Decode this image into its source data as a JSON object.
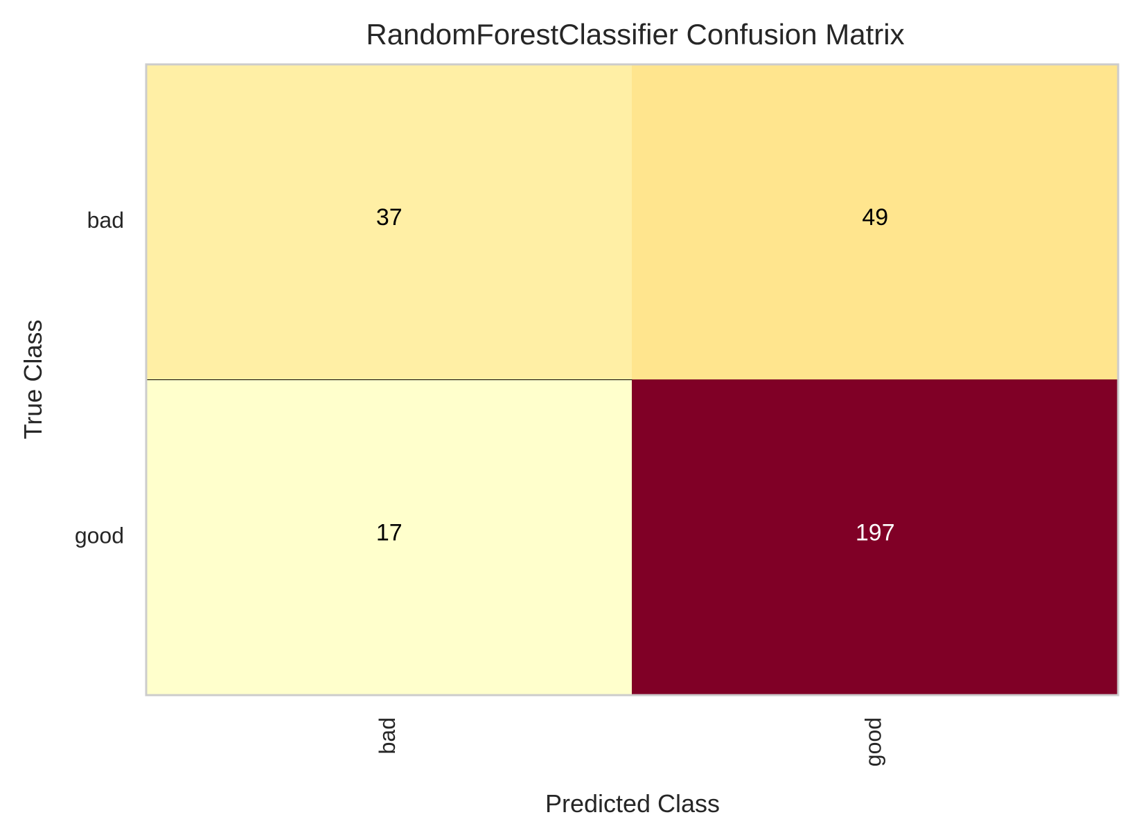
{
  "chart_data": {
    "type": "heatmap",
    "title": "RandomForestClassifier Confusion Matrix",
    "xlabel": "Predicted Class",
    "ylabel": "True Class",
    "x_categories": [
      "bad",
      "good"
    ],
    "y_categories": [
      "bad",
      "good"
    ],
    "values": [
      [
        37,
        49
      ],
      [
        17,
        197
      ]
    ],
    "colormap": "YlOrRd",
    "colorbar": false,
    "grid": false,
    "colors": {
      "low": "#ffffcc",
      "mid": "#fed976",
      "high": "#800026",
      "frame": "#cccccc",
      "text_dark": "#000000",
      "text_light": "#ffffff",
      "label": "#262626"
    }
  }
}
